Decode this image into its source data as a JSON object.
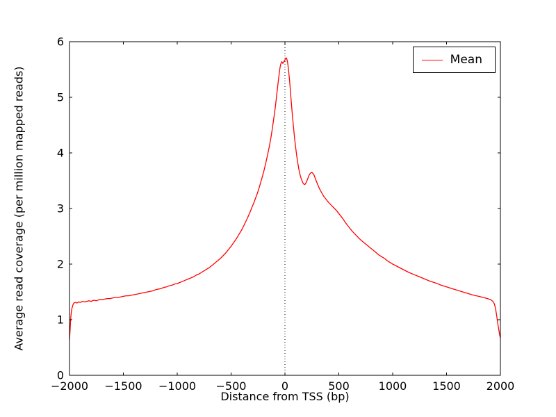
{
  "figure": {
    "background": "#ffffff",
    "axes_background": "#ffffff",
    "spine_color": "#000000"
  },
  "chart_data": {
    "type": "line",
    "title": "",
    "xlabel": "Distance from TSS (bp)",
    "ylabel": "Average read coverage (per million mapped reads)",
    "xlim": [
      -2000,
      2000
    ],
    "ylim": [
      0,
      6
    ],
    "grid": false,
    "xticks": [
      {
        "value": -2000,
        "label": "−2000"
      },
      {
        "value": -1500,
        "label": "−1500"
      },
      {
        "value": -1000,
        "label": "−1000"
      },
      {
        "value": -500,
        "label": "−500"
      },
      {
        "value": 0,
        "label": "0"
      },
      {
        "value": 500,
        "label": "500"
      },
      {
        "value": 1000,
        "label": "1000"
      },
      {
        "value": 1500,
        "label": "1500"
      },
      {
        "value": 2000,
        "label": "2000"
      }
    ],
    "yticks": [
      {
        "value": 0,
        "label": "0"
      },
      {
        "value": 1,
        "label": "1"
      },
      {
        "value": 2,
        "label": "2"
      },
      {
        "value": 3,
        "label": "3"
      },
      {
        "value": 4,
        "label": "4"
      },
      {
        "value": 5,
        "label": "5"
      },
      {
        "value": 6,
        "label": "6"
      }
    ],
    "legend": {
      "position": "upper right",
      "entries": [
        {
          "label": "Mean",
          "color": "#ff0000"
        }
      ]
    },
    "vline": {
      "x": 0,
      "style": "dotted",
      "color": "#000000"
    },
    "series": [
      {
        "name": "Mean",
        "color": "#ff0000",
        "points": [
          [
            -2000,
            0.64
          ],
          [
            -1995,
            0.8
          ],
          [
            -1990,
            0.97
          ],
          [
            -1985,
            1.1
          ],
          [
            -1980,
            1.18
          ],
          [
            -1970,
            1.26
          ],
          [
            -1960,
            1.3
          ],
          [
            -1945,
            1.31
          ],
          [
            -1930,
            1.3
          ],
          [
            -1915,
            1.32
          ],
          [
            -1900,
            1.31
          ],
          [
            -1880,
            1.33
          ],
          [
            -1860,
            1.32
          ],
          [
            -1840,
            1.33
          ],
          [
            -1820,
            1.34
          ],
          [
            -1800,
            1.33
          ],
          [
            -1775,
            1.35
          ],
          [
            -1750,
            1.34
          ],
          [
            -1725,
            1.36
          ],
          [
            -1700,
            1.36
          ],
          [
            -1675,
            1.37
          ],
          [
            -1650,
            1.38
          ],
          [
            -1625,
            1.38
          ],
          [
            -1600,
            1.39
          ],
          [
            -1575,
            1.4
          ],
          [
            -1550,
            1.4
          ],
          [
            -1525,
            1.41
          ],
          [
            -1500,
            1.42
          ],
          [
            -1475,
            1.43
          ],
          [
            -1450,
            1.43
          ],
          [
            -1425,
            1.44
          ],
          [
            -1400,
            1.45
          ],
          [
            -1375,
            1.46
          ],
          [
            -1350,
            1.47
          ],
          [
            -1325,
            1.48
          ],
          [
            -1300,
            1.49
          ],
          [
            -1275,
            1.5
          ],
          [
            -1250,
            1.51
          ],
          [
            -1225,
            1.52
          ],
          [
            -1200,
            1.54
          ],
          [
            -1175,
            1.55
          ],
          [
            -1150,
            1.56
          ],
          [
            -1125,
            1.58
          ],
          [
            -1100,
            1.59
          ],
          [
            -1075,
            1.61
          ],
          [
            -1050,
            1.62
          ],
          [
            -1025,
            1.64
          ],
          [
            -1000,
            1.65
          ],
          [
            -975,
            1.67
          ],
          [
            -950,
            1.69
          ],
          [
            -925,
            1.71
          ],
          [
            -900,
            1.73
          ],
          [
            -875,
            1.75
          ],
          [
            -850,
            1.77
          ],
          [
            -825,
            1.8
          ],
          [
            -800,
            1.82
          ],
          [
            -775,
            1.85
          ],
          [
            -750,
            1.88
          ],
          [
            -725,
            1.91
          ],
          [
            -700,
            1.94
          ],
          [
            -675,
            1.98
          ],
          [
            -650,
            2.02
          ],
          [
            -625,
            2.06
          ],
          [
            -600,
            2.1
          ],
          [
            -575,
            2.15
          ],
          [
            -550,
            2.2
          ],
          [
            -525,
            2.26
          ],
          [
            -500,
            2.32
          ],
          [
            -475,
            2.39
          ],
          [
            -450,
            2.46
          ],
          [
            -425,
            2.54
          ],
          [
            -400,
            2.62
          ],
          [
            -375,
            2.72
          ],
          [
            -350,
            2.82
          ],
          [
            -325,
            2.93
          ],
          [
            -300,
            3.05
          ],
          [
            -285,
            3.12
          ],
          [
            -270,
            3.2
          ],
          [
            -255,
            3.28
          ],
          [
            -240,
            3.37
          ],
          [
            -225,
            3.47
          ],
          [
            -210,
            3.57
          ],
          [
            -195,
            3.68
          ],
          [
            -180,
            3.8
          ],
          [
            -165,
            3.93
          ],
          [
            -150,
            4.07
          ],
          [
            -140,
            4.17
          ],
          [
            -130,
            4.28
          ],
          [
            -120,
            4.4
          ],
          [
            -110,
            4.53
          ],
          [
            -100,
            4.67
          ],
          [
            -90,
            4.82
          ],
          [
            -80,
            4.98
          ],
          [
            -70,
            5.15
          ],
          [
            -60,
            5.32
          ],
          [
            -55,
            5.4
          ],
          [
            -50,
            5.48
          ],
          [
            -45,
            5.54
          ],
          [
            -40,
            5.59
          ],
          [
            -35,
            5.62
          ],
          [
            -30,
            5.64
          ],
          [
            -25,
            5.63
          ],
          [
            -20,
            5.61
          ],
          [
            -15,
            5.62
          ],
          [
            -10,
            5.64
          ],
          [
            -5,
            5.66
          ],
          [
            0,
            5.67
          ],
          [
            5,
            5.69
          ],
          [
            10,
            5.71
          ],
          [
            15,
            5.7
          ],
          [
            20,
            5.67
          ],
          [
            25,
            5.62
          ],
          [
            30,
            5.55
          ],
          [
            35,
            5.46
          ],
          [
            40,
            5.36
          ],
          [
            45,
            5.25
          ],
          [
            50,
            5.13
          ],
          [
            55,
            5.01
          ],
          [
            60,
            4.89
          ],
          [
            70,
            4.66
          ],
          [
            80,
            4.45
          ],
          [
            90,
            4.26
          ],
          [
            100,
            4.09
          ],
          [
            110,
            3.94
          ],
          [
            120,
            3.81
          ],
          [
            130,
            3.7
          ],
          [
            140,
            3.61
          ],
          [
            150,
            3.54
          ],
          [
            160,
            3.49
          ],
          [
            170,
            3.45
          ],
          [
            180,
            3.43
          ],
          [
            190,
            3.44
          ],
          [
            200,
            3.48
          ],
          [
            210,
            3.53
          ],
          [
            220,
            3.58
          ],
          [
            230,
            3.62
          ],
          [
            240,
            3.64
          ],
          [
            250,
            3.65
          ],
          [
            260,
            3.63
          ],
          [
            270,
            3.6
          ],
          [
            280,
            3.55
          ],
          [
            290,
            3.5
          ],
          [
            300,
            3.45
          ],
          [
            315,
            3.38
          ],
          [
            330,
            3.32
          ],
          [
            345,
            3.27
          ],
          [
            360,
            3.22
          ],
          [
            380,
            3.17
          ],
          [
            400,
            3.12
          ],
          [
            420,
            3.08
          ],
          [
            440,
            3.04
          ],
          [
            460,
            3.0
          ],
          [
            480,
            2.96
          ],
          [
            500,
            2.91
          ],
          [
            520,
            2.86
          ],
          [
            540,
            2.81
          ],
          [
            560,
            2.75
          ],
          [
            580,
            2.7
          ],
          [
            600,
            2.65
          ],
          [
            625,
            2.59
          ],
          [
            650,
            2.54
          ],
          [
            675,
            2.49
          ],
          [
            700,
            2.44
          ],
          [
            725,
            2.4
          ],
          [
            750,
            2.36
          ],
          [
            775,
            2.32
          ],
          [
            800,
            2.28
          ],
          [
            825,
            2.24
          ],
          [
            850,
            2.2
          ],
          [
            875,
            2.16
          ],
          [
            900,
            2.13
          ],
          [
            925,
            2.1
          ],
          [
            950,
            2.06
          ],
          [
            975,
            2.03
          ],
          [
            1000,
            2.0
          ],
          [
            1050,
            1.95
          ],
          [
            1100,
            1.9
          ],
          [
            1150,
            1.85
          ],
          [
            1200,
            1.81
          ],
          [
            1250,
            1.77
          ],
          [
            1300,
            1.73
          ],
          [
            1350,
            1.69
          ],
          [
            1400,
            1.66
          ],
          [
            1450,
            1.62
          ],
          [
            1500,
            1.59
          ],
          [
            1550,
            1.56
          ],
          [
            1600,
            1.53
          ],
          [
            1650,
            1.5
          ],
          [
            1700,
            1.47
          ],
          [
            1750,
            1.44
          ],
          [
            1800,
            1.42
          ],
          [
            1840,
            1.4
          ],
          [
            1880,
            1.38
          ],
          [
            1910,
            1.36
          ],
          [
            1930,
            1.33
          ],
          [
            1945,
            1.28
          ],
          [
            1955,
            1.2
          ],
          [
            1965,
            1.08
          ],
          [
            1975,
            0.94
          ],
          [
            1985,
            0.82
          ],
          [
            1995,
            0.71
          ],
          [
            2000,
            0.67
          ]
        ]
      }
    ]
  }
}
